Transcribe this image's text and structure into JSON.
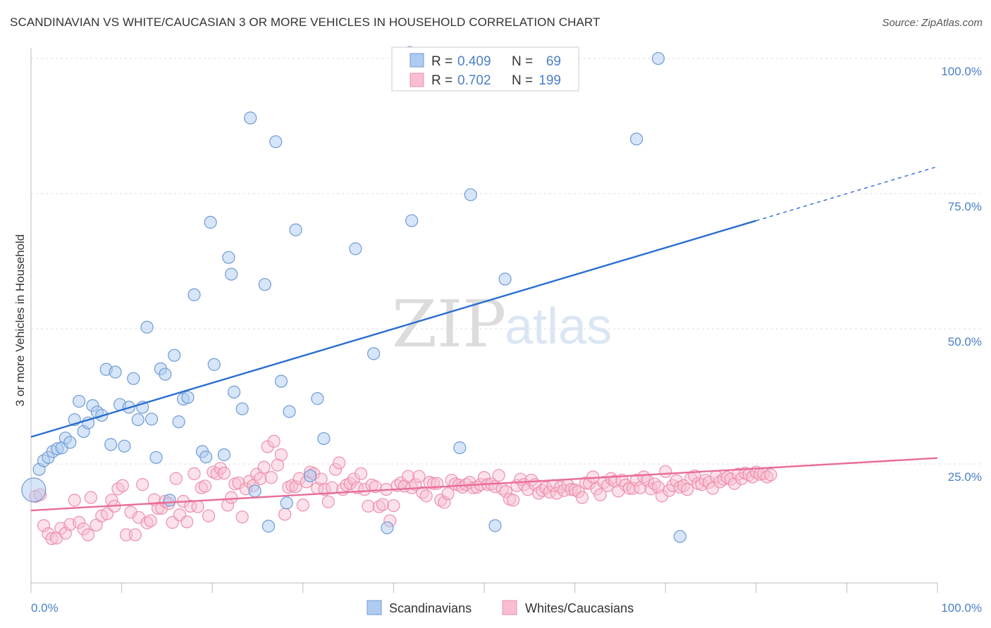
{
  "title": "SCANDINAVIAN VS WHITE/CAUCASIAN 3 OR MORE VEHICLES IN HOUSEHOLD CORRELATION CHART",
  "source": "Source: ZipAtlas.com",
  "watermark": {
    "zip": "ZIP",
    "atlas": "atlas"
  },
  "colors": {
    "blue_fill": "#aecbf0",
    "blue_stroke": "#6f9bd6",
    "blue_line": "#2a6dd0",
    "pink_fill": "#f7bfd0",
    "pink_stroke": "#ee8fac",
    "pink_line": "#e96c97",
    "accent_text": "#4a7fc8",
    "grid": "#dddddd"
  },
  "legend": {
    "rows": [
      {
        "r_label": "R =",
        "r_value": "0.409",
        "n_label": "N =",
        "n_value": "69"
      },
      {
        "r_label": "R =",
        "r_value": "0.702",
        "n_label": "N =",
        "n_value": "199"
      }
    ]
  },
  "bottom_legend": [
    "Scandinavians",
    "Whites/Caucasians"
  ],
  "chart_data": {
    "type": "scatter",
    "ylabel": "3 or more Vehicles in Household",
    "x_tick_labels": [
      "0.0%",
      "100.0%"
    ],
    "y_tick_labels": [
      "100.0%",
      "75.0%",
      "50.0%",
      "25.0%"
    ],
    "xlim": [
      0,
      100
    ],
    "ylim": [
      3,
      103
    ],
    "legend_placement": "top-center",
    "grid": true,
    "series": [
      {
        "name": "Scandinavians",
        "r": 0.409,
        "n": 69,
        "trend": {
          "x0": 0,
          "y0": 30.0,
          "x1": 80,
          "y1": 70.0,
          "dash_to_x": 100,
          "dash_to_y": 80.0
        },
        "points": [
          [
            0.3,
            20.2
          ],
          [
            0.9,
            24.0
          ],
          [
            1.4,
            25.6
          ],
          [
            1.9,
            26.2
          ],
          [
            2.4,
            27.3
          ],
          [
            2.9,
            27.8
          ],
          [
            3.4,
            28.0
          ],
          [
            3.8,
            29.8
          ],
          [
            4.3,
            29.0
          ],
          [
            4.8,
            33.2
          ],
          [
            5.3,
            36.6
          ],
          [
            5.8,
            31.0
          ],
          [
            6.3,
            32.6
          ],
          [
            6.8,
            35.8
          ],
          [
            7.3,
            34.6
          ],
          [
            7.8,
            34.0
          ],
          [
            8.3,
            42.5
          ],
          [
            8.8,
            28.6
          ],
          [
            9.3,
            42.0
          ],
          [
            9.8,
            36.0
          ],
          [
            10.3,
            28.3
          ],
          [
            10.8,
            35.5
          ],
          [
            11.3,
            40.8
          ],
          [
            11.8,
            33.2
          ],
          [
            12.3,
            35.5
          ],
          [
            12.8,
            50.3
          ],
          [
            13.3,
            33.3
          ],
          [
            13.8,
            26.2
          ],
          [
            14.3,
            42.6
          ],
          [
            14.8,
            41.6
          ],
          [
            15.3,
            18.3
          ],
          [
            15.8,
            45.1
          ],
          [
            16.3,
            32.8
          ],
          [
            16.8,
            37.0
          ],
          [
            17.3,
            37.3
          ],
          [
            18.0,
            56.3
          ],
          [
            18.9,
            27.3
          ],
          [
            19.3,
            26.3
          ],
          [
            19.8,
            69.7
          ],
          [
            20.2,
            43.4
          ],
          [
            21.3,
            26.7
          ],
          [
            21.8,
            63.2
          ],
          [
            22.1,
            60.1
          ],
          [
            22.4,
            38.3
          ],
          [
            23.3,
            35.2
          ],
          [
            24.2,
            89.0
          ],
          [
            24.7,
            20.0
          ],
          [
            25.8,
            58.2
          ],
          [
            26.2,
            13.5
          ],
          [
            27.0,
            84.6
          ],
          [
            27.6,
            40.3
          ],
          [
            28.2,
            17.8
          ],
          [
            28.5,
            34.7
          ],
          [
            29.2,
            68.3
          ],
          [
            30.8,
            22.8
          ],
          [
            31.6,
            37.1
          ],
          [
            32.3,
            29.7
          ],
          [
            35.8,
            64.8
          ],
          [
            37.8,
            45.4
          ],
          [
            39.3,
            13.2
          ],
          [
            41.8,
            101.1
          ],
          [
            42.0,
            70.0
          ],
          [
            47.3,
            28.0
          ],
          [
            48.5,
            74.8
          ],
          [
            51.2,
            13.6
          ],
          [
            52.3,
            59.2
          ],
          [
            66.8,
            85.1
          ],
          [
            69.2,
            100.0
          ],
          [
            71.6,
            11.6
          ]
        ]
      },
      {
        "name": "Whites/Caucasians",
        "r": 0.702,
        "n": 199,
        "trend": {
          "x0": 0,
          "y0": 16.4,
          "x1": 100,
          "y1": 26.1
        },
        "points": [
          [
            0.5,
            19.0
          ],
          [
            1.0,
            19.3
          ],
          [
            1.4,
            13.6
          ],
          [
            1.9,
            12.1
          ],
          [
            2.3,
            11.2
          ],
          [
            2.8,
            11.3
          ],
          [
            3.3,
            13.1
          ],
          [
            3.8,
            12.2
          ],
          [
            4.3,
            13.8
          ],
          [
            4.8,
            18.3
          ],
          [
            5.3,
            14.2
          ],
          [
            5.8,
            13.0
          ],
          [
            6.3,
            11.9
          ],
          [
            6.6,
            18.8
          ],
          [
            7.2,
            13.7
          ],
          [
            7.8,
            15.4
          ],
          [
            8.4,
            15.8
          ],
          [
            8.9,
            18.3
          ],
          [
            9.2,
            17.2
          ],
          [
            9.6,
            20.4
          ],
          [
            10.1,
            21.0
          ],
          [
            10.5,
            11.9
          ],
          [
            11.0,
            16.1
          ],
          [
            11.5,
            11.9
          ],
          [
            11.9,
            15.1
          ],
          [
            12.3,
            21.2
          ],
          [
            12.8,
            14.1
          ],
          [
            13.2,
            14.5
          ],
          [
            13.6,
            18.4
          ],
          [
            14.0,
            16.8
          ],
          [
            14.4,
            16.8
          ],
          [
            14.8,
            18.1
          ],
          [
            15.2,
            17.7
          ],
          [
            15.6,
            14.2
          ],
          [
            16.0,
            22.3
          ],
          [
            16.4,
            15.6
          ],
          [
            16.8,
            18.1
          ],
          [
            17.2,
            14.3
          ],
          [
            17.6,
            17.2
          ],
          [
            18.0,
            23.2
          ],
          [
            18.4,
            17.1
          ],
          [
            18.8,
            20.6
          ],
          [
            19.2,
            20.9
          ],
          [
            19.6,
            15.4
          ],
          [
            20.1,
            23.5
          ],
          [
            20.5,
            23.2
          ],
          [
            20.9,
            24.2
          ],
          [
            21.3,
            23.3
          ],
          [
            21.7,
            17.4
          ],
          [
            22.1,
            18.8
          ],
          [
            22.5,
            21.3
          ],
          [
            22.9,
            21.5
          ],
          [
            23.3,
            15.2
          ],
          [
            23.7,
            20.4
          ],
          [
            24.1,
            21.8
          ],
          [
            24.5,
            21.0
          ],
          [
            24.9,
            23.1
          ],
          [
            25.3,
            22.3
          ],
          [
            25.7,
            24.4
          ],
          [
            26.1,
            28.2
          ],
          [
            26.5,
            22.5
          ],
          [
            26.8,
            29.2
          ],
          [
            27.2,
            24.8
          ],
          [
            27.6,
            26.7
          ],
          [
            28.0,
            15.7
          ],
          [
            28.4,
            20.7
          ],
          [
            28.8,
            21.0
          ],
          [
            29.2,
            20.8
          ],
          [
            29.6,
            22.3
          ],
          [
            30.0,
            17.4
          ],
          [
            30.4,
            21.7
          ],
          [
            30.8,
            23.5
          ],
          [
            31.2,
            23.2
          ],
          [
            31.6,
            20.5
          ],
          [
            32.0,
            22.2
          ],
          [
            32.4,
            20.3
          ],
          [
            32.8,
            18.0
          ],
          [
            33.2,
            20.6
          ],
          [
            33.6,
            24.0
          ],
          [
            34.0,
            25.2
          ],
          [
            34.4,
            20.3
          ],
          [
            34.8,
            21.1
          ],
          [
            35.2,
            21.4
          ],
          [
            35.6,
            22.2
          ],
          [
            36.0,
            20.6
          ],
          [
            36.4,
            23.2
          ],
          [
            36.8,
            20.3
          ],
          [
            37.2,
            17.2
          ],
          [
            37.6,
            21.1
          ],
          [
            38.0,
            20.8
          ],
          [
            38.4,
            17.1
          ],
          [
            38.8,
            17.5
          ],
          [
            39.2,
            20.3
          ],
          [
            39.6,
            14.5
          ],
          [
            40.0,
            17.3
          ],
          [
            40.4,
            21.0
          ],
          [
            40.8,
            21.5
          ],
          [
            41.2,
            20.9
          ],
          [
            41.6,
            22.7
          ],
          [
            42.0,
            20.6
          ],
          [
            42.4,
            21.2
          ],
          [
            42.8,
            22.7
          ],
          [
            43.2,
            19.7
          ],
          [
            43.6,
            19.1
          ],
          [
            44.0,
            21.6
          ],
          [
            44.4,
            21.4
          ],
          [
            44.8,
            21.4
          ],
          [
            45.2,
            18.3
          ],
          [
            45.6,
            17.9
          ],
          [
            46.0,
            19.5
          ],
          [
            46.4,
            22.0
          ],
          [
            46.8,
            21.3
          ],
          [
            47.2,
            21.1
          ],
          [
            47.6,
            20.7
          ],
          [
            48.0,
            21.2
          ],
          [
            48.4,
            21.6
          ],
          [
            48.8,
            20.6
          ],
          [
            49.2,
            20.7
          ],
          [
            49.6,
            21.2
          ],
          [
            50.0,
            22.5
          ],
          [
            50.4,
            21.2
          ],
          [
            50.8,
            21.3
          ],
          [
            51.2,
            20.8
          ],
          [
            51.6,
            22.9
          ],
          [
            52.0,
            20.4
          ],
          [
            52.4,
            19.9
          ],
          [
            52.8,
            18.5
          ],
          [
            53.2,
            18.3
          ],
          [
            53.6,
            21.0
          ],
          [
            54.0,
            22.2
          ],
          [
            54.4,
            21.2
          ],
          [
            54.8,
            20.3
          ],
          [
            55.2,
            22.0
          ],
          [
            55.6,
            21.2
          ],
          [
            56.0,
            19.6
          ],
          [
            56.4,
            20.1
          ],
          [
            56.8,
            20.6
          ],
          [
            57.2,
            19.8
          ],
          [
            57.6,
            21.0
          ],
          [
            58.0,
            19.6
          ],
          [
            58.4,
            20.7
          ],
          [
            58.8,
            20.1
          ],
          [
            59.2,
            21.1
          ],
          [
            59.6,
            20.3
          ],
          [
            60.0,
            20.2
          ],
          [
            60.4,
            19.9
          ],
          [
            60.8,
            18.8
          ],
          [
            61.2,
            21.5
          ],
          [
            61.6,
            21.4
          ],
          [
            62.0,
            22.6
          ],
          [
            62.4,
            20.4
          ],
          [
            62.8,
            19.3
          ],
          [
            63.2,
            21.6
          ],
          [
            63.6,
            21.0
          ],
          [
            64.0,
            22.3
          ],
          [
            64.4,
            21.8
          ],
          [
            64.8,
            20.0
          ],
          [
            65.2,
            22.0
          ],
          [
            65.6,
            21.1
          ],
          [
            66.0,
            20.5
          ],
          [
            66.4,
            20.5
          ],
          [
            66.8,
            22.0
          ],
          [
            67.2,
            20.6
          ],
          [
            67.6,
            22.6
          ],
          [
            68.0,
            21.9
          ],
          [
            68.4,
            20.4
          ],
          [
            68.8,
            21.3
          ],
          [
            69.2,
            20.7
          ],
          [
            69.6,
            19.1
          ],
          [
            70.0,
            23.6
          ],
          [
            70.4,
            20.1
          ],
          [
            70.8,
            21.0
          ],
          [
            71.2,
            21.9
          ],
          [
            71.6,
            20.7
          ],
          [
            72.0,
            21.0
          ],
          [
            72.4,
            20.3
          ],
          [
            72.8,
            22.3
          ],
          [
            73.2,
            22.8
          ],
          [
            73.6,
            21.4
          ],
          [
            74.0,
            21.2
          ],
          [
            74.4,
            22.0
          ],
          [
            74.8,
            21.6
          ],
          [
            75.2,
            20.5
          ],
          [
            75.6,
            22.7
          ],
          [
            76.0,
            21.7
          ],
          [
            76.4,
            22.2
          ],
          [
            76.8,
            22.5
          ],
          [
            77.2,
            22.2
          ],
          [
            77.6,
            21.4
          ],
          [
            78.0,
            23.1
          ],
          [
            78.4,
            22.3
          ],
          [
            78.8,
            23.3
          ],
          [
            79.2,
            23.0
          ],
          [
            79.6,
            22.6
          ],
          [
            80.0,
            23.5
          ],
          [
            80.4,
            23.1
          ],
          [
            80.8,
            23.2
          ],
          [
            81.2,
            22.6
          ],
          [
            81.6,
            23.0
          ]
        ]
      }
    ]
  }
}
